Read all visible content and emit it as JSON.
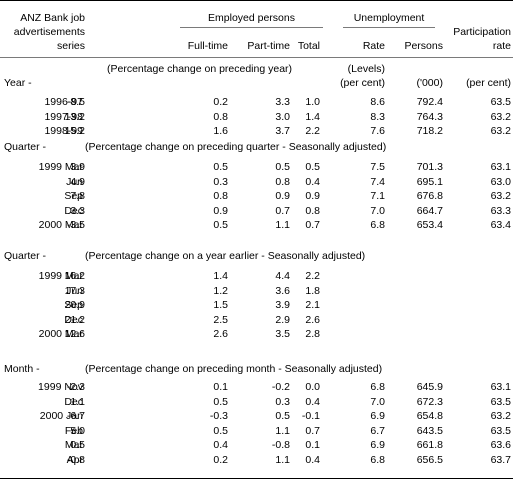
{
  "header": {
    "anz": [
      "ANZ Bank job",
      "advertisements",
      "series"
    ],
    "employed_group": "Employed persons",
    "unemployment_group": "Unemployment",
    "participation": [
      "Participation",
      "rate"
    ],
    "col_fulltime": "Full-time",
    "col_parttime": "Part-time",
    "col_total": "Total",
    "col_rate": "Rate",
    "col_persons": "Persons"
  },
  "sections": [
    {
      "label": "Year -",
      "note": "(Percentage change on preceding year)",
      "subnotes": {
        "rate": [
          "(Levels)",
          "(per cent)"
        ],
        "persons": "('000)",
        "participation": "(per cent)"
      },
      "rows": [
        {
          "period": "1996-97",
          "values": [
            "-8.5",
            "0.2",
            "3.3",
            "1.0",
            "8.6",
            "792.4",
            "63.5"
          ]
        },
        {
          "period": "1997-98",
          "values": [
            "13.2",
            "0.8",
            "3.0",
            "1.4",
            "8.3",
            "764.3",
            "63.2"
          ]
        },
        {
          "period": "1998-99",
          "values": [
            "15.2",
            "1.6",
            "3.7",
            "2.2",
            "7.6",
            "718.2",
            "63.2"
          ]
        }
      ]
    },
    {
      "label": "Quarter -",
      "note": "(Percentage change on preceding quarter - Seasonally adjusted)",
      "rows": [
        {
          "period": "1999 Mar",
          "values": [
            "3.9",
            "0.5",
            "0.5",
            "0.5",
            "7.5",
            "701.3",
            "63.1"
          ]
        },
        {
          "period": "Jun",
          "values": [
            "4.9",
            "0.3",
            "0.8",
            "0.4",
            "7.4",
            "695.1",
            "63.0"
          ]
        },
        {
          "period": "Sep",
          "values": [
            "7.8",
            "0.8",
            "0.9",
            "0.9",
            "7.1",
            "676.8",
            "63.2"
          ]
        },
        {
          "period": "Dec",
          "values": [
            "3.3",
            "0.9",
            "0.7",
            "0.8",
            "7.0",
            "664.7",
            "63.3"
          ]
        },
        {
          "period": "2000 Mar",
          "values": [
            "-3.5",
            "0.5",
            "1.1",
            "0.7",
            "6.8",
            "653.4",
            "63.4"
          ]
        }
      ]
    },
    {
      "label": "Quarter -",
      "note": "(Percentage change on a year earlier - Seasonally adjusted)",
      "rows": [
        {
          "period": "1999 Mar",
          "values": [
            "16.2",
            "1.4",
            "4.4",
            "2.2",
            "",
            "",
            ""
          ]
        },
        {
          "period": "Jun",
          "values": [
            "17.3",
            "1.2",
            "3.6",
            "1.8",
            "",
            "",
            ""
          ]
        },
        {
          "period": "Sep",
          "values": [
            "20.9",
            "1.5",
            "3.9",
            "2.1",
            "",
            "",
            ""
          ]
        },
        {
          "period": "Dec",
          "values": [
            "21.2",
            "2.5",
            "2.9",
            "2.6",
            "",
            "",
            ""
          ]
        },
        {
          "period": "2000 Mar",
          "values": [
            "12.6",
            "2.6",
            "3.5",
            "2.8",
            "",
            "",
            ""
          ]
        }
      ]
    },
    {
      "label": "Month -",
      "note": "(Percentage change on preceding month - Seasonally adjusted)",
      "rows": [
        {
          "period": "1999 Nov",
          "values": [
            "-2.3",
            "0.1",
            "-0.2",
            "0.0",
            "6.8",
            "645.9",
            "63.1"
          ]
        },
        {
          "period": "Dec",
          "values": [
            "1.1",
            "0.5",
            "0.3",
            "0.4",
            "7.0",
            "672.3",
            "63.5"
          ]
        },
        {
          "period": "2000 Jan",
          "values": [
            "-6.7",
            "-0.3",
            "0.5",
            "-0.1",
            "6.9",
            "654.8",
            "63.2"
          ]
        },
        {
          "period": "Feb",
          "values": [
            "5.0",
            "0.5",
            "1.1",
            "0.7",
            "6.7",
            "643.5",
            "63.5"
          ]
        },
        {
          "period": "Mar",
          "values": [
            "0.5",
            "0.4",
            "-0.8",
            "0.1",
            "6.9",
            "661.8",
            "63.6"
          ]
        },
        {
          "period": "Apr",
          "values": [
            "-0.8",
            "0.2",
            "1.1",
            "0.4",
            "6.8",
            "656.5",
            "63.7"
          ]
        }
      ]
    }
  ]
}
